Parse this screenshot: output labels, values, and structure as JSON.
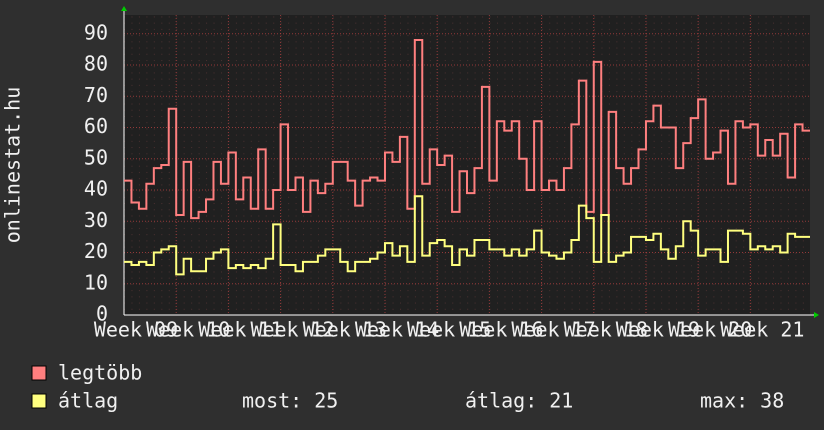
{
  "chart_data": {
    "type": "line",
    "step": true,
    "vertical_label": "onlinestat.hu",
    "xlim": [
      0,
      92
    ],
    "xticks": [
      {
        "value": 0,
        "label": "Week 09"
      },
      {
        "value": 7,
        "label": "Week 10"
      },
      {
        "value": 14,
        "label": "Week 11"
      },
      {
        "value": 21,
        "label": "Week 12"
      },
      {
        "value": 28,
        "label": "Week 13"
      },
      {
        "value": 35,
        "label": "Week 14"
      },
      {
        "value": 42,
        "label": "Week 15"
      },
      {
        "value": 49,
        "label": "Week 16"
      },
      {
        "value": 56,
        "label": "Week 17"
      },
      {
        "value": 63,
        "label": "Week 18"
      },
      {
        "value": 70,
        "label": "Week 19"
      },
      {
        "value": 77,
        "label": "Week 20"
      },
      {
        "value": 84,
        "label": "Week 21"
      }
    ],
    "ylim": [
      0,
      96
    ],
    "yticks": [
      0,
      10,
      20,
      30,
      40,
      50,
      60,
      70,
      80,
      90
    ],
    "grid": true,
    "series": [
      {
        "name": "legtöbb",
        "color": "#ff7f7f",
        "values": [
          43,
          36,
          34,
          42,
          47,
          48,
          66,
          32,
          49,
          31,
          33,
          37,
          49,
          42,
          52,
          37,
          44,
          34,
          53,
          34,
          40,
          61,
          40,
          44,
          33,
          43,
          39,
          42,
          49,
          49,
          43,
          35,
          43,
          44,
          43,
          52,
          49,
          57,
          34,
          88,
          42,
          53,
          48,
          51,
          33,
          46,
          39,
          47,
          73,
          43,
          62,
          59,
          62,
          50,
          40,
          62,
          40,
          43,
          40,
          47,
          61,
          75,
          33,
          81,
          32,
          65,
          47,
          42,
          47,
          53,
          62,
          67,
          60,
          60,
          47,
          55,
          63,
          69,
          50,
          52,
          59,
          42,
          62,
          60,
          61,
          51,
          56,
          51,
          58,
          44,
          61,
          59
        ]
      },
      {
        "name": "átlag",
        "color": "#ffff7f",
        "values": [
          17,
          16,
          17,
          16,
          20,
          21,
          22,
          13,
          18,
          14,
          14,
          18,
          20,
          21,
          15,
          16,
          15,
          16,
          15,
          18,
          29,
          16,
          16,
          14,
          17,
          17,
          19,
          21,
          21,
          17,
          14,
          17,
          17,
          18,
          20,
          23,
          19,
          22,
          17,
          38,
          19,
          23,
          24,
          22,
          16,
          21,
          19,
          24,
          24,
          21,
          21,
          19,
          21,
          19,
          21,
          27,
          20,
          19,
          18,
          20,
          24,
          35,
          31,
          17,
          32,
          17,
          19,
          20,
          25,
          25,
          24,
          26,
          21,
          18,
          22,
          30,
          27,
          19,
          21,
          21,
          17,
          27,
          27,
          26,
          21,
          22,
          21,
          22,
          20,
          26,
          25,
          25
        ]
      }
    ],
    "stats": [
      {
        "label": "most:",
        "value": 25
      },
      {
        "label": "átlag:",
        "value": 21
      },
      {
        "label": "max:",
        "value": 38
      }
    ]
  }
}
